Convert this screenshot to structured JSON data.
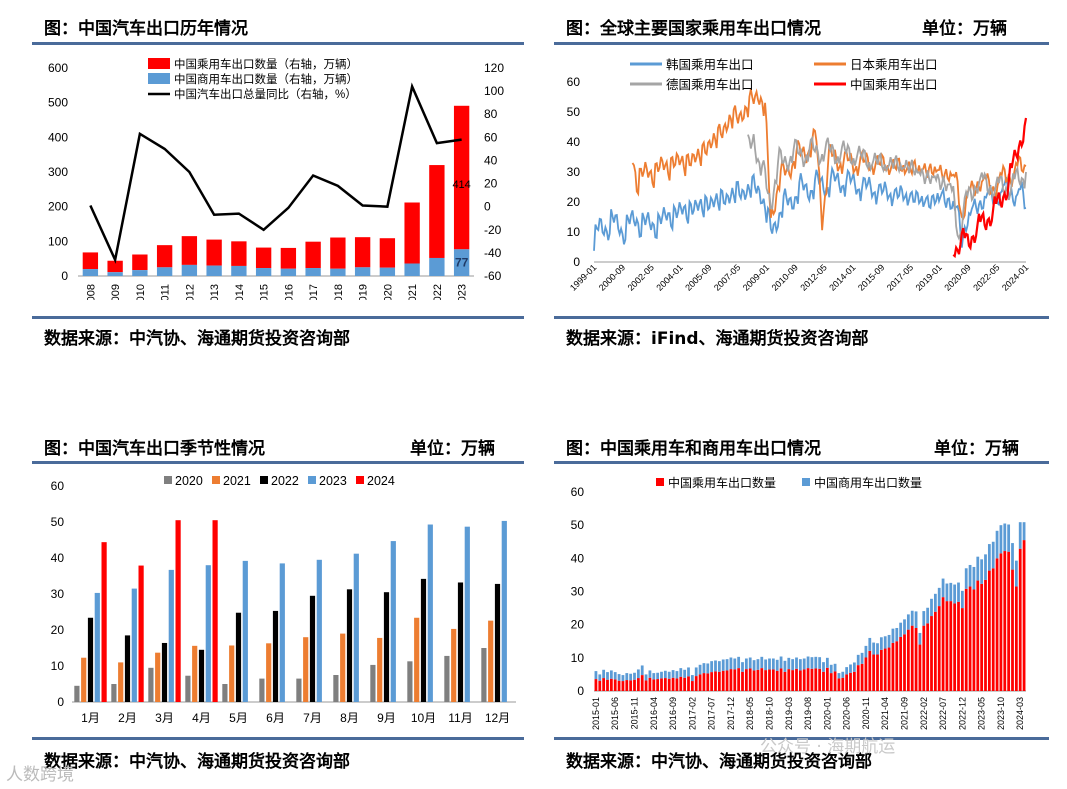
{
  "panels": {
    "tl": {
      "title": "图：中国汽车出口历年情况",
      "source": "数据来源：中汽协、海通期货投资咨询部",
      "bar_label_total": "414",
      "bar_label_commercial": "77"
    },
    "tr": {
      "title": "图：全球主要国家乘用车出口情况",
      "unit": "单位：万辆",
      "source": "数据来源：iFind、海通期货投资咨询部"
    },
    "bl": {
      "title": "图：中国汽车出口季节性情况",
      "unit": "单位：万辆",
      "source": "数据来源：中汽协、海通期货投资咨询部"
    },
    "br": {
      "title": "图：中国乘用车和商用车出口情况",
      "unit": "单位：万辆",
      "source": "数据来源：中汽协、海通期货投资咨询部"
    }
  },
  "watermark": {
    "left": "人数跨境",
    "right": "公众号 · 海期航运"
  },
  "colors": {
    "red": "#ff0000",
    "blue": "#5b9bd5",
    "orange": "#ed7d31",
    "gray": "#a5a5a5",
    "black": "#000000",
    "gray2020": "#7f7f7f",
    "rule": "#4a6b9a"
  },
  "chart_data": [
    {
      "id": "annual",
      "type": "bar",
      "title": "中国汽车出口历年情况",
      "categories": [
        "2008",
        "2009",
        "2010",
        "2011",
        "2012",
        "2013",
        "2014",
        "2015",
        "2016",
        "2017",
        "2018",
        "2019",
        "2020",
        "2021",
        "2022",
        "2023"
      ],
      "series": [
        {
          "name": "中国乘用车出口数量（右轴，万辆）",
          "kind": "bar",
          "values": [
            48,
            33,
            45,
            64,
            83,
            75,
            71,
            59,
            60,
            76,
            90,
            87,
            85,
            176,
            268,
            414
          ]
        },
        {
          "name": "中国商用车出口数量（右轴，万辆）",
          "kind": "bar",
          "values": [
            20,
            11,
            17,
            25,
            32,
            30,
            29,
            23,
            21,
            23,
            21,
            25,
            24,
            36,
            52,
            77
          ]
        },
        {
          "name": "中国汽车出口总量同比（右轴，%）",
          "kind": "line",
          "axis": "right",
          "values": [
            1,
            -46,
            63,
            50,
            30,
            -7,
            -6,
            -20,
            -1,
            27,
            18,
            1,
            0,
            104,
            55,
            58
          ]
        }
      ],
      "ylim_left": [
        0,
        600
      ],
      "yticks_left": [
        0,
        100,
        200,
        300,
        400,
        500,
        600
      ],
      "ylim_right": [
        -60,
        120
      ],
      "yticks_right": [
        -60,
        -40,
        -20,
        0,
        20,
        40,
        60,
        80,
        100,
        120
      ]
    },
    {
      "id": "global",
      "type": "line",
      "title": "全球主要国家乘用车出口情况",
      "xticks": [
        "1999-01",
        "2000-09",
        "2002-05",
        "2004-01",
        "2005-09",
        "2007-05",
        "2009-01",
        "2010-09",
        "2012-05",
        "2014-01",
        "2015-09",
        "2017-05",
        "2019-01",
        "2020-09",
        "2022-05",
        "2024-01"
      ],
      "ylim": [
        0,
        60
      ],
      "yticks": [
        0,
        10,
        20,
        30,
        40,
        50,
        60
      ],
      "series": [
        {
          "name": "韩国乘用车出口",
          "color": "#5b9bd5",
          "start": 0,
          "anchors": [
            [
              0,
              6
            ],
            [
              4,
              11
            ],
            [
              12,
              13
            ],
            [
              20,
              11
            ],
            [
              30,
              14
            ],
            [
              40,
              12
            ],
            [
              55,
              16
            ],
            [
              70,
              18
            ],
            [
              90,
              21
            ],
            [
              100,
              23
            ],
            [
              115,
              25
            ],
            [
              118,
              22
            ],
            [
              124,
              10
            ],
            [
              132,
              18
            ],
            [
              145,
              24
            ],
            [
              160,
              26
            ],
            [
              175,
              27
            ],
            [
              190,
              25
            ],
            [
              205,
              23
            ],
            [
              220,
              22
            ],
            [
              235,
              20
            ],
            [
              245,
              22
            ],
            [
              255,
              17
            ],
            [
              258,
              8
            ],
            [
              262,
              14
            ],
            [
              270,
              20
            ],
            [
              280,
              22
            ],
            [
              290,
              24
            ],
            [
              300,
              22
            ],
            [
              303,
              18
            ]
          ]
        },
        {
          "name": "日本乘用车出口",
          "color": "#ed7d31",
          "start": 27,
          "anchors": [
            [
              27,
              35
            ],
            [
              30,
              28
            ],
            [
              40,
              30
            ],
            [
              55,
              33
            ],
            [
              70,
              34
            ],
            [
              85,
              41
            ],
            [
              95,
              47
            ],
            [
              108,
              51
            ],
            [
              112,
              55
            ],
            [
              115,
              57
            ],
            [
              120,
              50
            ],
            [
              124,
              15
            ],
            [
              130,
              27
            ],
            [
              140,
              34
            ],
            [
              150,
              38
            ],
            [
              156,
              40
            ],
            [
              160,
              15
            ],
            [
              165,
              35
            ],
            [
              180,
              33
            ],
            [
              195,
              33
            ],
            [
              210,
              32
            ],
            [
              230,
              31
            ],
            [
              245,
              30
            ],
            [
              255,
              27
            ],
            [
              258,
              14
            ],
            [
              262,
              22
            ],
            [
              270,
              27
            ],
            [
              280,
              25
            ],
            [
              290,
              29
            ],
            [
              298,
              31
            ],
            [
              303,
              32
            ]
          ]
        },
        {
          "name": "德国乘用车出口",
          "color": "#a5a5a5",
          "start": 108,
          "anchors": [
            [
              108,
              38
            ],
            [
              112,
              42
            ],
            [
              116,
              32
            ],
            [
              120,
              28
            ],
            [
              124,
              20
            ],
            [
              130,
              33
            ],
            [
              140,
              36
            ],
            [
              160,
              37
            ],
            [
              180,
              36
            ],
            [
              200,
              33
            ],
            [
              220,
              32
            ],
            [
              235,
              28
            ],
            [
              245,
              27
            ],
            [
              252,
              23
            ],
            [
              256,
              7
            ],
            [
              260,
              20
            ],
            [
              270,
              27
            ],
            [
              280,
              25
            ],
            [
              290,
              25
            ],
            [
              300,
              28
            ],
            [
              303,
              30
            ]
          ]
        },
        {
          "name": "中国乘用车出口",
          "color": "#ff0000",
          "start": 252,
          "anchors": [
            [
              252,
              5
            ],
            [
              255,
              4
            ],
            [
              258,
              8
            ],
            [
              262,
              7
            ],
            [
              266,
              9
            ],
            [
              270,
              12
            ],
            [
              275,
              14
            ],
            [
              280,
              17
            ],
            [
              285,
              20
            ],
            [
              290,
              26
            ],
            [
              295,
              33
            ],
            [
              300,
              43
            ],
            [
              303,
              48
            ]
          ]
        }
      ],
      "n_points": 304
    },
    {
      "id": "seasonal",
      "type": "bar",
      "title": "中国汽车出口季节性情况",
      "categories": [
        "1月",
        "2月",
        "3月",
        "4月",
        "5月",
        "6月",
        "7月",
        "8月",
        "9月",
        "10月",
        "11月",
        "12月"
      ],
      "ylim": [
        0,
        60
      ],
      "yticks": [
        0,
        10,
        20,
        30,
        40,
        50,
        60
      ],
      "series": [
        {
          "name": "2020",
          "color": "#7f7f7f",
          "values": [
            4.5,
            5,
            9.5,
            7.3,
            5,
            6.5,
            6.5,
            7.5,
            10.3,
            11.3,
            12.8,
            15
          ]
        },
        {
          "name": "2021",
          "color": "#ed7d31",
          "values": [
            12.3,
            11,
            13.7,
            15.6,
            15.7,
            16.3,
            18,
            19,
            17.8,
            23.4,
            20.3,
            22.6
          ]
        },
        {
          "name": "2022",
          "color": "#000000",
          "values": [
            23.4,
            18.5,
            16.4,
            14.5,
            24.8,
            25.3,
            29.5,
            31.3,
            30.5,
            34.2,
            33.2,
            32.8
          ]
        },
        {
          "name": "2023",
          "color": "#5b9bd5",
          "values": [
            30.3,
            31.5,
            36.7,
            38,
            39.2,
            38.5,
            39.5,
            41.2,
            44.7,
            49.3,
            48.7,
            50.3
          ]
        },
        {
          "name": "2024",
          "color": "#ff0000",
          "values": [
            44.4,
            37.9,
            50.5,
            50.5,
            null,
            null,
            null,
            null,
            null,
            null,
            null,
            null
          ]
        }
      ]
    },
    {
      "id": "monthly",
      "type": "bar",
      "title": "中国乘用车和商用车出口情况",
      "xticks": [
        "2015-01",
        "2015-06",
        "2015-11",
        "2016-04",
        "2016-09",
        "2017-02",
        "2017-07",
        "2017-12",
        "2018-05",
        "2018-10",
        "2019-03",
        "2019-08",
        "2020-01",
        "2020-06",
        "2020-11",
        "2021-04",
        "2021-09",
        "2022-02",
        "2022-07",
        "2022-12",
        "2023-05",
        "2023-10",
        "2024-03"
      ],
      "ylim": [
        0,
        60
      ],
      "yticks": [
        0,
        10,
        20,
        30,
        40,
        50,
        60
      ],
      "series": [
        {
          "name": "中国乘用车出口数量",
          "color": "#ff0000",
          "values": [
            3.6,
            3.1,
            3.9,
            3.4,
            3.7,
            3.5,
            3.1,
            3.0,
            3.3,
            3.2,
            3.4,
            3.9,
            4.8,
            3.2,
            4.0,
            3.5,
            3.6,
            3.8,
            3.9,
            3.7,
            4.0,
            3.8,
            4.3,
            4.0,
            4.4,
            3.0,
            4.5,
            5.0,
            5.4,
            5.3,
            5.7,
            5.9,
            5.8,
            6.1,
            6.2,
            6.6,
            6.5,
            6.9,
            5.8,
            6.6,
            6.8,
            6.2,
            6.4,
            6.9,
            6.3,
            6.5,
            6.5,
            6.1,
            6.8,
            5.8,
            6.6,
            6.3,
            6.7,
            6.2,
            6.5,
            6.9,
            6.7,
            6.8,
            6.7,
            5.8,
            7.0,
            5.4,
            5.9,
            3.8,
            4.0,
            5.0,
            5.5,
            5.8,
            7.8,
            8.2,
            10.1,
            12.1,
            11.0,
            11.0,
            12.4,
            12.8,
            13.1,
            14.5,
            15.0,
            16.3,
            17.1,
            18.5,
            19.7,
            19.0,
            14.0,
            19.7,
            20.4,
            22.6,
            23.9,
            25.6,
            28.3,
            27.1,
            27.1,
            26.4,
            26.9,
            25.0,
            30.8,
            31.5,
            30.6,
            33.3,
            32.3,
            33.5,
            36.3,
            37.0,
            40.0,
            41.5,
            42.2,
            42.0,
            36.6,
            31.5,
            42.9,
            45.5
          ]
        },
        {
          "name": "中国商用车出口数量",
          "color": "#5b9bd5",
          "values": [
            2.4,
            1.9,
            2.5,
            2.3,
            2.5,
            2.2,
            2.0,
            1.8,
            2.1,
            2.0,
            2.1,
            2.6,
            2.9,
            1.8,
            2.2,
            1.9,
            1.9,
            2.0,
            2.2,
            2.1,
            2.3,
            2.2,
            2.6,
            2.4,
            2.7,
            1.8,
            2.6,
            2.9,
            3.0,
            3.0,
            3.3,
            3.3,
            3.2,
            3.4,
            3.4,
            3.5,
            3.3,
            3.4,
            2.9,
            3.2,
            3.3,
            3.1,
            3.2,
            3.4,
            3.2,
            3.3,
            3.3,
            3.3,
            3.6,
            3.3,
            3.4,
            3.3,
            3.4,
            3.4,
            3.3,
            3.5,
            3.5,
            3.5,
            3.5,
            2.9,
            3.0,
            2.5,
            2.3,
            1.6,
            1.8,
            2.2,
            2.5,
            2.8,
            3.1,
            3.3,
            3.5,
            3.9,
            3.6,
            3.4,
            3.8,
            3.7,
            3.8,
            4.3,
            4.0,
            4.3,
            4.5,
            4.6,
            4.5,
            5.0,
            3.5,
            4.4,
            4.7,
            5.2,
            5.4,
            5.5,
            5.6,
            5.3,
            5.5,
            5.7,
            5.8,
            5.2,
            6.2,
            6.5,
            6.8,
            7.2,
            7.4,
            7.7,
            8.0,
            8.0,
            8.3,
            8.5,
            8.3,
            8.2,
            8.0,
            7.8,
            8.0,
            5.4
          ]
        }
      ]
    }
  ]
}
